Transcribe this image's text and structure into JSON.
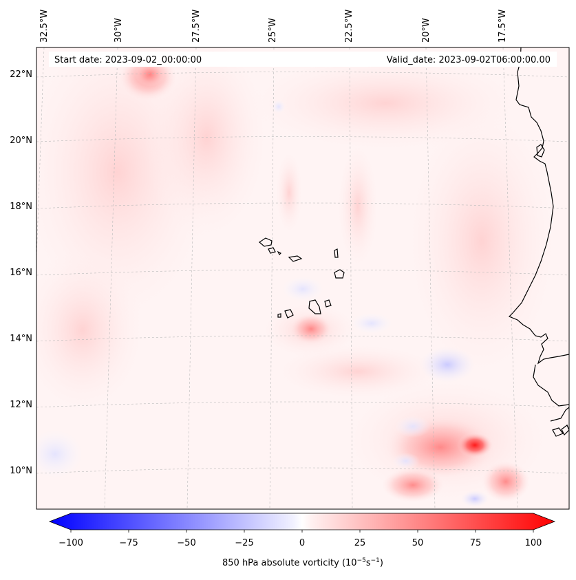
{
  "map": {
    "start_label": "Start date: 2023-09-02_00:00:00",
    "valid_label": "Valid_date: 2023-09-02T06:00:00.00",
    "lon_labels": [
      "32.5°W",
      "30°W",
      "27.5°W",
      "25°W",
      "22.5°W",
      "20°W",
      "17.5°W"
    ],
    "lat_labels": [
      "22°N",
      "20°N",
      "18°N",
      "16°N",
      "14°N",
      "12°N",
      "10°N"
    ],
    "variable": "850 hPa absolute vorticity",
    "colorscale": {
      "min": -100,
      "max": 100,
      "ticks": [
        "−100",
        "−75",
        "−50",
        "−25",
        "0",
        "25",
        "50",
        "75",
        "100"
      ],
      "negative_color": "#0000ff",
      "positive_color": "#ff0000",
      "neutral_color": "#ffffff"
    }
  },
  "colorbar": {
    "label_prefix": "850 hPa absolute vorticity (10",
    "label_exp1": "−5",
    "label_mid": "s",
    "label_exp2": "−1",
    "label_suffix": ")"
  }
}
